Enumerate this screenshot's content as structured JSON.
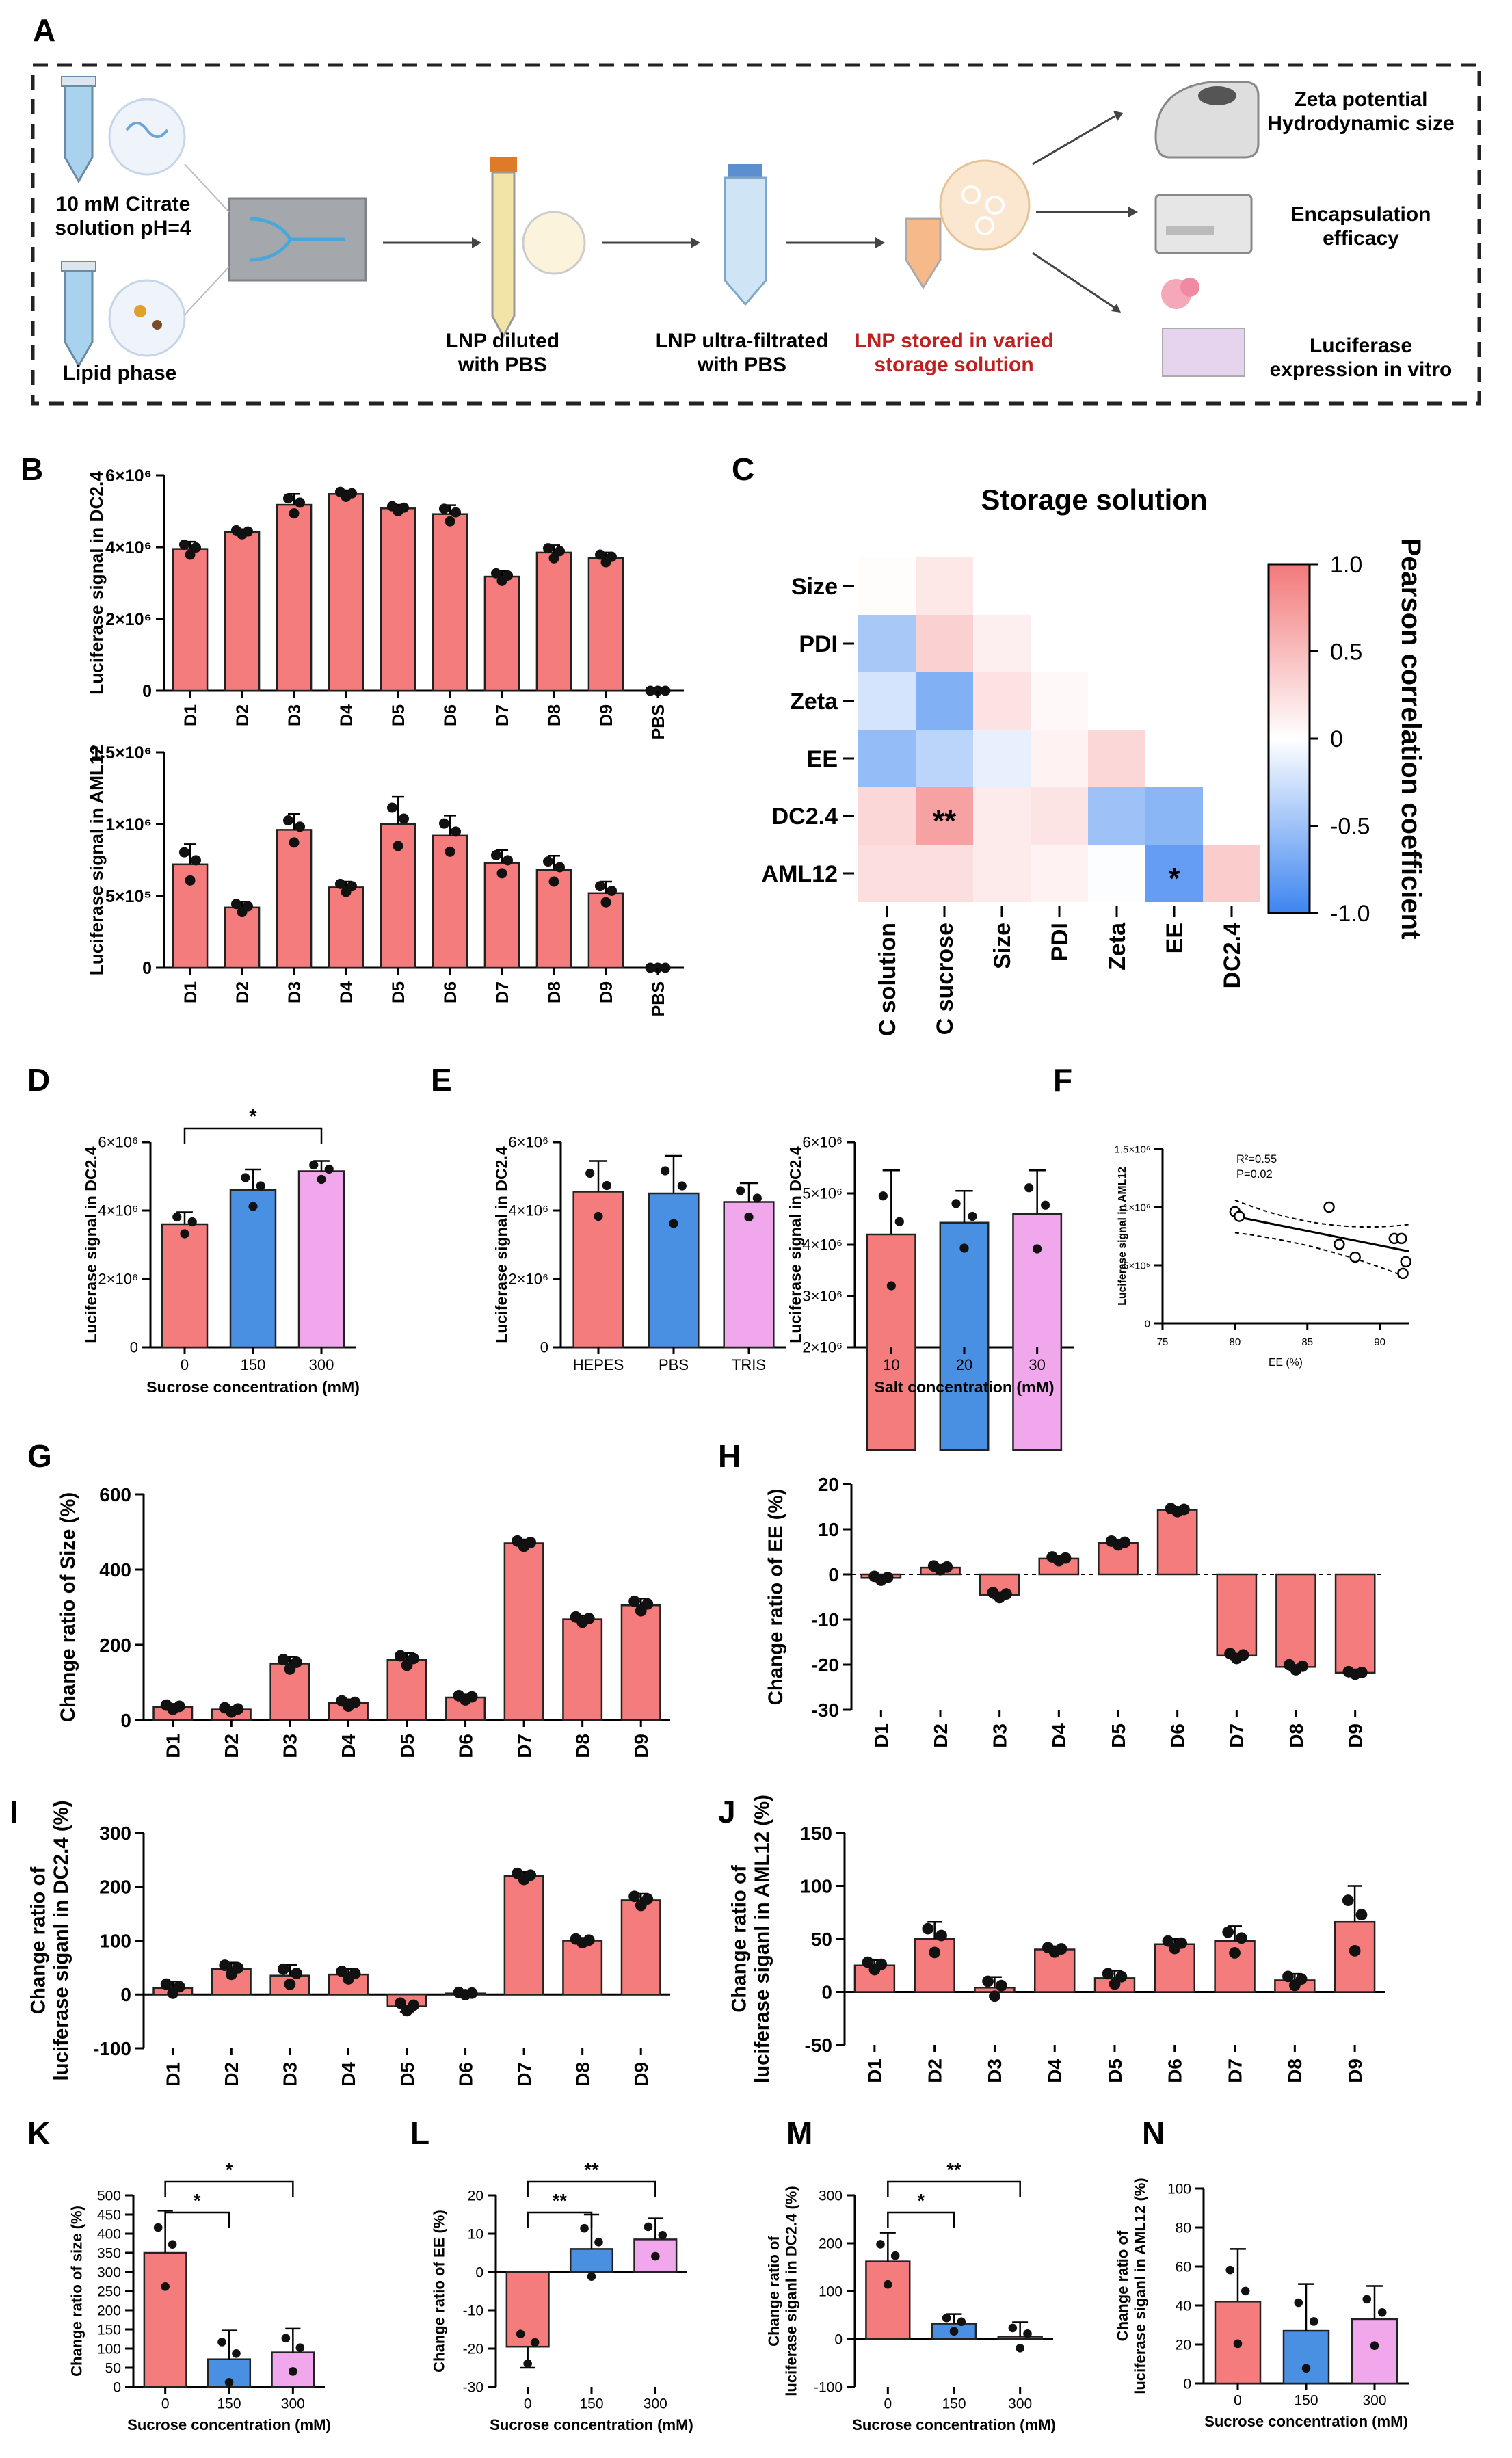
{
  "panel_letters": {
    "A": "A",
    "B": "B",
    "C": "C",
    "D": "D",
    "E": "E",
    "F": "F",
    "G": "G",
    "H": "H",
    "I": "I",
    "J": "J",
    "K": "K",
    "L": "L",
    "M": "M",
    "N": "N"
  },
  "schematic": {
    "citrate": [
      "10 mM Citrate",
      "solution pH=4"
    ],
    "lipid": "Lipid phase",
    "diluted": [
      "LNP diluted",
      "with PBS"
    ],
    "ultrafiltered": [
      "LNP ultra-filtrated",
      "with PBS"
    ],
    "stored": [
      "LNP stored in varied",
      "storage solution"
    ],
    "zeta": [
      "Zeta potential",
      "Hydrodynamic size"
    ],
    "encapsulation": [
      "Encapsulation",
      "efficacy"
    ],
    "luciferase": [
      "Luciferase",
      "expression in vitro"
    ],
    "colors": {
      "stored_text": "#c0201f",
      "tube": "#a9d2ee",
      "box": "#222222"
    }
  },
  "heatmap": {
    "title": "Storage solution",
    "rows": [
      "Size",
      "PDI",
      "Zeta",
      "EE",
      "DC2.4",
      "AML12"
    ],
    "cols": [
      "C solution",
      "C sucrose",
      "Size",
      "PDI",
      "Zeta",
      "EE",
      "DC2.4"
    ],
    "values": [
      [
        0.02,
        0.18
      ],
      [
        -0.45,
        0.35,
        0.12
      ],
      [
        -0.22,
        -0.65,
        0.22,
        0.05
      ],
      [
        -0.55,
        -0.35,
        -0.12,
        0.1,
        0.3
      ],
      [
        0.3,
        0.7,
        0.15,
        0.2,
        -0.5,
        -0.6
      ],
      [
        0.25,
        0.25,
        0.15,
        0.1,
        -0.02,
        -0.8,
        0.38
      ]
    ],
    "stars": [
      {
        "r": 4,
        "c": 1,
        "t": "**"
      },
      {
        "r": 5,
        "c": 5,
        "t": "*"
      }
    ],
    "colorbar": {
      "label": "Pearson correlation coefficient",
      "ticks": [
        "1.0",
        "0.5",
        "0",
        "-0.5",
        "-1.0"
      ],
      "min": -1,
      "max": 1,
      "neg_color": "#3d85f0",
      "pos_color": "#f2797a"
    }
  },
  "chart_data": [
    {
      "panel": "B-top",
      "type": "bar",
      "categories": [
        "D1",
        "D2",
        "D3",
        "D4",
        "D5",
        "D6",
        "D7",
        "D8",
        "D9",
        "PBS"
      ],
      "values": [
        3950000,
        4420000,
        5180000,
        5480000,
        5080000,
        4920000,
        3180000,
        3850000,
        3700000,
        0
      ],
      "errors": [
        200000,
        80000,
        300000,
        100000,
        100000,
        250000,
        150000,
        200000,
        150000,
        0
      ],
      "ylabel": "Luciferase signal in DC2.4",
      "ylim": [
        0,
        6000000
      ],
      "yticks": [
        0,
        2000000,
        4000000,
        6000000
      ],
      "yticklabels": [
        "0",
        "2×10⁶",
        "4×10⁶",
        "6×10⁶"
      ]
    },
    {
      "panel": "B-bottom",
      "type": "bar",
      "categories": [
        "D1",
        "D2",
        "D3",
        "D4",
        "D5",
        "D6",
        "D7",
        "D8",
        "D9",
        "PBS"
      ],
      "values": [
        720000,
        420000,
        960000,
        560000,
        1000000,
        920000,
        730000,
        680000,
        520000,
        0
      ],
      "errors": [
        140000,
        40000,
        110000,
        40000,
        190000,
        140000,
        90000,
        100000,
        80000,
        0
      ],
      "ylabel": "Luciferase signal in AML12",
      "ylim": [
        0,
        1500000
      ],
      "yticks": [
        0,
        500000,
        1000000,
        1500000
      ],
      "yticklabels": [
        "0",
        "5×10⁵",
        "1×10⁶",
        "1.5×10⁶"
      ]
    },
    {
      "panel": "D",
      "type": "bar",
      "categories": [
        "0",
        "150",
        "300"
      ],
      "values": [
        3600000,
        4600000,
        5150000
      ],
      "errors": [
        350000,
        600000,
        300000
      ],
      "ylabel": "Luciferase signal in DC2.4",
      "xlabel": "Sucrose concentration (mM)",
      "ylim": [
        0,
        6000000
      ],
      "yticks": [
        0,
        2000000,
        4000000,
        6000000
      ],
      "yticklabels": [
        "0",
        "2×10⁶",
        "4×10⁶",
        "6×10⁶"
      ],
      "significance": [
        {
          "a": 0,
          "b": 2,
          "label": "*"
        }
      ]
    },
    {
      "panel": "E-left",
      "type": "bar",
      "categories": [
        "HEPES",
        "PBS",
        "TRIS"
      ],
      "values": [
        4550000,
        4500000,
        4250000
      ],
      "errors": [
        900000,
        1100000,
        550000
      ],
      "ylabel": "Luciferase signal in DC2.4",
      "ylim": [
        0,
        6000000
      ],
      "yticks": [
        0,
        2000000,
        4000000,
        6000000
      ],
      "yticklabels": [
        "0",
        "2×10⁶",
        "4×10⁶",
        "6×10⁶"
      ]
    },
    {
      "panel": "E-right",
      "type": "bar",
      "categories": [
        "10",
        "20",
        "30"
      ],
      "values": [
        4200000,
        4430000,
        4600000
      ],
      "errors": [
        1250000,
        620000,
        850000
      ],
      "ylabel": "Luciferase signal in DC2.4",
      "xlabel": "Salt concentration (mM)",
      "ylim": [
        2000000,
        6000000
      ],
      "yticks": [
        2000000,
        3000000,
        4000000,
        5000000,
        6000000
      ],
      "yticklabels": [
        "2×10⁶",
        "3×10⁶",
        "4×10⁶",
        "5×10⁶",
        "6×10⁶"
      ]
    },
    {
      "panel": "F",
      "type": "scatter",
      "points": [
        [
          80,
          960000
        ],
        [
          80.3,
          920000
        ],
        [
          86.5,
          1000000
        ],
        [
          87.2,
          680000
        ],
        [
          88.3,
          570000
        ],
        [
          91,
          730000
        ],
        [
          91.5,
          730000
        ],
        [
          91.6,
          430000
        ],
        [
          91.8,
          530000
        ]
      ],
      "fit": [
        [
          80,
          920000
        ],
        [
          92,
          620000
        ]
      ],
      "ylabel": "Luciferase signal in AML12",
      "xlabel": "EE (%)",
      "xlim": [
        75,
        92
      ],
      "ylim": [
        0,
        1500000
      ],
      "xticks": [
        75,
        80,
        85,
        90
      ],
      "xticklabels": [
        "75",
        "80",
        "85",
        "90"
      ],
      "yticks": [
        0,
        500000,
        1000000,
        1500000
      ],
      "yticklabels": [
        "0",
        "5×10⁵",
        "1×10⁶",
        "1.5×10⁶"
      ],
      "annotations": [
        "R²=0.55",
        "P=0.02"
      ]
    },
    {
      "panel": "G",
      "type": "bar",
      "categories": [
        "D1",
        "D2",
        "D3",
        "D4",
        "D5",
        "D6",
        "D7",
        "D8",
        "D9"
      ],
      "values": [
        35,
        28,
        150,
        45,
        160,
        60,
        470,
        268,
        305
      ],
      "errors": [
        8,
        8,
        18,
        10,
        18,
        8,
        10,
        10,
        18
      ],
      "ylabel": "Change ratio of Size (%)",
      "ylim": [
        0,
        600
      ],
      "yticks": [
        0,
        200,
        400,
        600
      ],
      "yticklabels": [
        "0",
        "200",
        "400",
        "600"
      ]
    },
    {
      "panel": "H",
      "type": "bar",
      "categories": [
        "D1",
        "D2",
        "D3",
        "D4",
        "D5",
        "D6",
        "D7",
        "D8",
        "D9"
      ],
      "values": [
        -0.8,
        1.5,
        -4.5,
        3.5,
        7,
        14.3,
        -18,
        -20.5,
        -21.8
      ],
      "errors": [
        0.6,
        0.6,
        0.8,
        0.6,
        0.6,
        0.5,
        0.8,
        0.8,
        0.4
      ],
      "ylabel": "Change ratio of EE (%)",
      "ylim": [
        -30,
        20
      ],
      "yticks": [
        -30,
        -20,
        -10,
        0,
        10,
        20
      ],
      "yticklabels": [
        "-30",
        "-20",
        "-10",
        "0",
        "10",
        "20"
      ]
    },
    {
      "panel": "I",
      "type": "bar",
      "categories": [
        "D1",
        "D2",
        "D3",
        "D4",
        "D5",
        "D6",
        "D7",
        "D8",
        "D9"
      ],
      "values": [
        12,
        47,
        35,
        37,
        -22,
        2,
        220,
        100,
        175
      ],
      "errors": [
        12,
        12,
        20,
        10,
        10,
        3,
        8,
        5,
        12
      ],
      "ylabel": "Change ratio of luciferase siganl in DC2.4 (%)",
      "ylim": [
        -100,
        300
      ],
      "yticks": [
        -100,
        0,
        100,
        200,
        300
      ],
      "yticklabels": [
        "-100",
        "0",
        "100",
        "200",
        "300"
      ]
    },
    {
      "panel": "J",
      "type": "bar",
      "categories": [
        "D1",
        "D2",
        "D3",
        "D4",
        "D5",
        "D6",
        "D7",
        "D8",
        "D9"
      ],
      "values": [
        25,
        50,
        4,
        40,
        13,
        45,
        48,
        11,
        66
      ],
      "errors": [
        5,
        16,
        10,
        3,
        7,
        5,
        14,
        6,
        34
      ],
      "ylabel": "Change ratio of luciferase siganl in AML12 (%)",
      "ylim": [
        -50,
        150
      ],
      "yticks": [
        -50,
        0,
        50,
        100,
        150
      ],
      "yticklabels": [
        "-50",
        "0",
        "50",
        "100",
        "150"
      ]
    },
    {
      "panel": "K",
      "type": "bar",
      "categories": [
        "0",
        "150",
        "300"
      ],
      "values": [
        350,
        72,
        90
      ],
      "errors": [
        110,
        75,
        62
      ],
      "ylabel": "Change ratio of size (%)",
      "xlabel": "Sucrose concentration (mM)",
      "ylim": [
        0,
        500
      ],
      "yticks": [
        0,
        50,
        100,
        150,
        200,
        250,
        300,
        350,
        400,
        450,
        500
      ],
      "yticklabels": [
        "0",
        "50",
        "100",
        "150",
        "200",
        "250",
        "300",
        "350",
        "400",
        "450",
        "500"
      ],
      "significance": [
        {
          "a": 0,
          "b": 1,
          "label": "*"
        },
        {
          "a": 0,
          "b": 2,
          "label": "*"
        }
      ]
    },
    {
      "panel": "L",
      "type": "bar",
      "categories": [
        "0",
        "150",
        "300"
      ],
      "values": [
        -19.5,
        6,
        8.5
      ],
      "errors": [
        5.5,
        9,
        5.5
      ],
      "ylabel": "Change ratio of EE (%)",
      "xlabel": "Sucrose concentration (mM)",
      "ylim": [
        -30,
        20
      ],
      "yticks": [
        -30,
        -20,
        -10,
        0,
        10,
        20
      ],
      "yticklabels": [
        "-30",
        "-20",
        "-10",
        "0",
        "10",
        "20"
      ],
      "significance": [
        {
          "a": 0,
          "b": 1,
          "label": "**"
        },
        {
          "a": 0,
          "b": 2,
          "label": "**"
        }
      ]
    },
    {
      "panel": "M",
      "type": "bar",
      "categories": [
        "0",
        "150",
        "300"
      ],
      "values": [
        162,
        32,
        5
      ],
      "errors": [
        60,
        20,
        30
      ],
      "ylabel": "Change ratio of luciferase siganl in DC2.4 (%)",
      "xlabel": "Sucrose concentration (mM)",
      "ylim": [
        -100,
        300
      ],
      "yticks": [
        -100,
        0,
        100,
        200,
        300
      ],
      "yticklabels": [
        "-100",
        "0",
        "100",
        "200",
        "300"
      ],
      "significance": [
        {
          "a": 0,
          "b": 1,
          "label": "*"
        },
        {
          "a": 0,
          "b": 2,
          "label": "**"
        }
      ]
    },
    {
      "panel": "N",
      "type": "bar",
      "categories": [
        "0",
        "150",
        "300"
      ],
      "values": [
        42,
        27,
        33
      ],
      "errors": [
        27,
        24,
        17
      ],
      "ylabel": "Change ratio of luciferase siganl in AML12 (%)",
      "xlabel": "Sucrose concentration (mM)",
      "ylim": [
        0,
        100
      ],
      "yticks": [
        0,
        20,
        40,
        60,
        80,
        100
      ],
      "yticklabels": [
        "0",
        "20",
        "40",
        "60",
        "80",
        "100"
      ]
    }
  ],
  "colors": {
    "red": "#f47c7c",
    "blue": "#4a90e2",
    "pink": "#f1a7ec",
    "edge": "#222222",
    "dot": "#111111"
  }
}
